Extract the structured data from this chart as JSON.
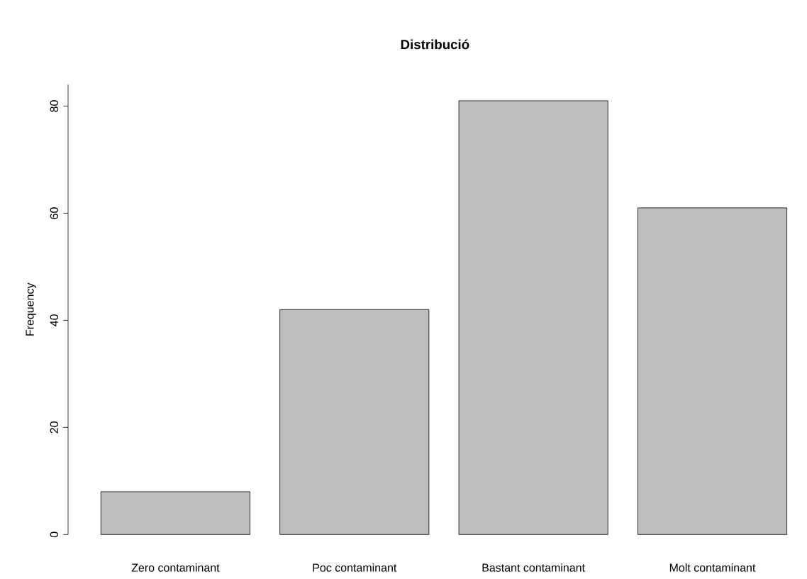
{
  "chart_data": {
    "type": "bar",
    "title": "Distribució",
    "ylabel": "Frequency",
    "categories": [
      "Zero contaminant",
      "Poc contaminant",
      "Bastant contaminant",
      "Molt contaminant"
    ],
    "values": [
      8,
      42,
      81,
      61
    ],
    "color": "#bebebe",
    "ylim": [
      0,
      84
    ],
    "yticks": [
      0,
      20,
      40,
      60,
      80
    ],
    "grid": false
  }
}
